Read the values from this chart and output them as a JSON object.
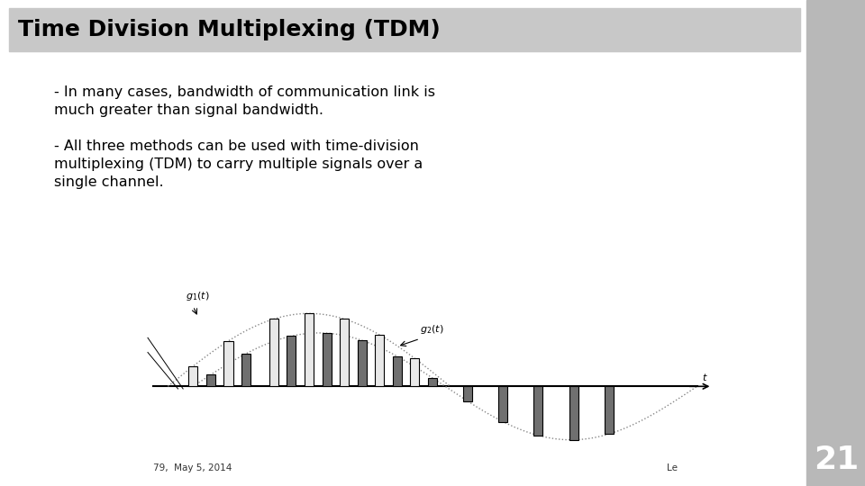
{
  "title": "Time Division Multiplexing (TDM)",
  "title_bg": "#c8c8c8",
  "title_color": "#000000",
  "slide_bg": "#ffffff",
  "right_panel_color": "#b8b8b8",
  "bullet1_line1": "- In many cases, bandwidth of communication link is",
  "bullet1_line2": "much greater than signal bandwidth.",
  "bullet2_line1": "- All three methods can be used with time-division",
  "bullet2_line2": "multiplexing (TDM) to carry multiple signals over a",
  "bullet2_line3": "single channel.",
  "footer_left": "79,  May 5, 2014",
  "footer_right": "Le",
  "page_num": "21",
  "text_font_size": 11.5,
  "title_font_size": 18
}
